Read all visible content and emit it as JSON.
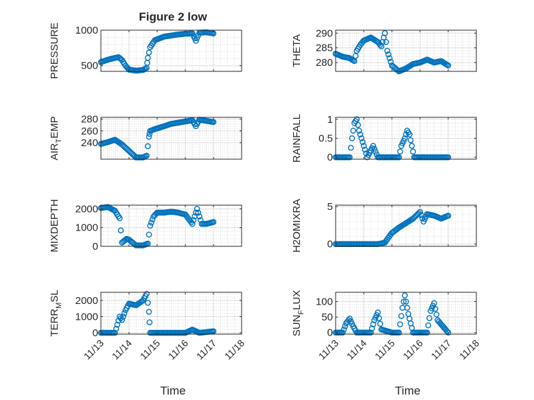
{
  "figure_title": "Figure 2 low",
  "x_axis_title": "Time",
  "chart_data": [
    {
      "type": "scatter",
      "ylabel": "PRESSURE",
      "xlim": [
        "11/13",
        "11/18"
      ],
      "xticks": [
        "11/13",
        "11/14",
        "11/15",
        "11/16",
        "11/17",
        "11/18"
      ],
      "ylim": [
        420,
        1000
      ],
      "yticks": [
        500,
        1000
      ],
      "yticklabels": [
        "500",
        "1000"
      ],
      "grid": true,
      "marker": "circle",
      "color": "#0072BD",
      "x": [
        "11/13 00:00",
        "11/13 06:00",
        "11/13 12:00",
        "11/13 15:00",
        "11/13 18:00",
        "11/13 21:00",
        "11/14 00:00",
        "11/14 06:00",
        "11/14 12:00",
        "11/14 15:00",
        "11/14 16:00",
        "11/14 18:00",
        "11/14 22:00",
        "11/15 06:00",
        "11/15 12:00",
        "11/15 18:00",
        "11/16 00:00",
        "11/16 06:00",
        "11/16 09:00",
        "11/16 12:00",
        "11/16 18:00",
        "11/17 00:00"
      ],
      "y": [
        550,
        585,
        610,
        620,
        580,
        500,
        445,
        430,
        440,
        470,
        610,
        760,
        860,
        910,
        925,
        940,
        950,
        955,
        850,
        965,
        970,
        955
      ]
    },
    {
      "type": "scatter",
      "ylabel": "THETA",
      "xlim": [
        "11/13",
        "11/18"
      ],
      "xticks": [
        "11/13",
        "11/14",
        "11/15",
        "11/16",
        "11/17",
        "11/18"
      ],
      "ylim": [
        277,
        291
      ],
      "yticks": [
        280,
        285,
        290
      ],
      "yticklabels": [
        "280",
        "285",
        "290"
      ],
      "grid": true,
      "marker": "circle",
      "color": "#0072BD",
      "x": [
        "11/13 00:00",
        "11/13 06:00",
        "11/13 12:00",
        "11/13 16:00",
        "11/13 18:00",
        "11/13 21:00",
        "11/14 00:00",
        "11/14 06:00",
        "11/14 12:00",
        "11/14 15:00",
        "11/14 18:00",
        "11/14 20:00",
        "11/15 00:00",
        "11/15 06:00",
        "11/15 12:00",
        "11/15 18:00",
        "11/16 00:00",
        "11/16 06:00",
        "11/16 12:00",
        "11/16 18:00",
        "11/17 00:00"
      ],
      "y": [
        283,
        282,
        281.5,
        280.5,
        284,
        286,
        287.5,
        288.5,
        287,
        285.5,
        290,
        284,
        279,
        277,
        278,
        279.5,
        280,
        281,
        280,
        280.5,
        279
      ]
    },
    {
      "type": "scatter",
      "ylabel": "AIR_TEMP",
      "xlim": [
        "11/13",
        "11/18"
      ],
      "xticks": [
        "11/13",
        "11/14",
        "11/15",
        "11/16",
        "11/17",
        "11/18"
      ],
      "ylim": [
        212,
        283
      ],
      "yticks": [
        240,
        260,
        280
      ],
      "yticklabels": [
        "240",
        "260",
        "280"
      ],
      "grid": true,
      "marker": "circle",
      "color": "#0072BD",
      "x": [
        "11/13 00:00",
        "11/13 06:00",
        "11/13 12:00",
        "11/13 18:00",
        "11/14 00:00",
        "11/14 06:00",
        "11/14 12:00",
        "11/14 15:00",
        "11/14 17:00",
        "11/14 18:00",
        "11/14 22:00",
        "11/15 06:00",
        "11/15 12:00",
        "11/15 18:00",
        "11/16 00:00",
        "11/16 06:00",
        "11/16 09:00",
        "11/16 12:00",
        "11/16 18:00",
        "11/17 00:00"
      ],
      "y": [
        238,
        241,
        245,
        237,
        226,
        215,
        215,
        218,
        250,
        260,
        263,
        268,
        272,
        274,
        276,
        278,
        268,
        279,
        277,
        275
      ]
    },
    {
      "type": "scatter",
      "ylabel": "RAINFALL",
      "xlim": [
        "11/13",
        "11/18"
      ],
      "xticks": [
        "11/13",
        "11/14",
        "11/15",
        "11/16",
        "11/17",
        "11/18"
      ],
      "ylim": [
        -0.05,
        1.05
      ],
      "yticks": [
        0,
        0.5,
        1
      ],
      "yticklabels": [
        "0",
        "0.5",
        "1"
      ],
      "grid": true,
      "marker": "circle",
      "color": "#0072BD",
      "x": [
        "11/13 00:00",
        "11/13 06:00",
        "11/13 12:00",
        "11/13 14:00",
        "11/13 16:00",
        "11/13 18:00",
        "11/13 20:00",
        "11/13 22:00",
        "11/14 00:00",
        "11/14 03:00",
        "11/14 08:00",
        "11/14 12:00",
        "11/15 00:00",
        "11/15 06:00",
        "11/15 08:00",
        "11/15 11:00",
        "11/15 13:00",
        "11/15 15:00",
        "11/15 17:00",
        "11/15 19:00",
        "11/16 00:00",
        "11/16 12:00",
        "11/17 00:00"
      ],
      "y": [
        0,
        0,
        0,
        0.5,
        0.9,
        1,
        0.7,
        0.5,
        0.3,
        0,
        0.3,
        0,
        0,
        0,
        0.3,
        0.5,
        0.7,
        0.6,
        0.3,
        0,
        0,
        0,
        0
      ]
    },
    {
      "type": "scatter",
      "ylabel": "MIXDEPTH",
      "xlim": [
        "11/13",
        "11/18"
      ],
      "xticks": [
        "11/13",
        "11/14",
        "11/15",
        "11/16",
        "11/17",
        "11/18"
      ],
      "ylim": [
        0,
        2200
      ],
      "yticks": [
        0,
        1000,
        2000
      ],
      "yticklabels": [
        "0",
        "1000",
        "2000"
      ],
      "grid": true,
      "marker": "circle",
      "color": "#0072BD",
      "x": [
        "11/13 00:00",
        "11/13 06:00",
        "11/13 12:00",
        "11/13 16:00",
        "11/13 18:00",
        "11/13 22:00",
        "11/14 00:00",
        "11/14 06:00",
        "11/14 12:00",
        "11/14 16:00",
        "11/14 18:00",
        "11/14 21:00",
        "11/15 00:00",
        "11/15 06:00",
        "11/15 12:00",
        "11/15 18:00",
        "11/16 00:00",
        "11/16 06:00",
        "11/16 08:00",
        "11/16 10:00",
        "11/16 14:00",
        "11/16 18:00",
        "11/17 00:00"
      ],
      "y": [
        2050,
        2100,
        1900,
        1500,
        200,
        400,
        350,
        50,
        50,
        150,
        1100,
        1600,
        1800,
        1800,
        1850,
        1800,
        1700,
        1200,
        1600,
        2000,
        1200,
        1200,
        1300
      ]
    },
    {
      "type": "scatter",
      "ylabel": "H2OMIXRA",
      "xlim": [
        "11/13",
        "11/18"
      ],
      "xticks": [
        "11/13",
        "11/14",
        "11/15",
        "11/16",
        "11/17",
        "11/18"
      ],
      "ylim": [
        -0.3,
        5.2
      ],
      "yticks": [
        0,
        5
      ],
      "yticklabels": [
        "0",
        "5"
      ],
      "grid": true,
      "marker": "circle",
      "color": "#0072BD",
      "x": [
        "11/13 00:00",
        "11/13 12:00",
        "11/14 00:00",
        "11/14 12:00",
        "11/14 18:00",
        "11/15 00:00",
        "11/15 06:00",
        "11/15 12:00",
        "11/15 18:00",
        "11/16 00:00",
        "11/16 03:00",
        "11/16 06:00",
        "11/16 12:00",
        "11/16 18:00",
        "11/17 00:00"
      ],
      "y": [
        0,
        0,
        0,
        0,
        0.2,
        1.5,
        2.2,
        2.8,
        3.4,
        4.3,
        3.0,
        4.0,
        3.8,
        3.4,
        3.8
      ]
    },
    {
      "type": "scatter",
      "ylabel": "TERR_MSL",
      "xlim": [
        "11/13",
        "11/18"
      ],
      "xticks": [
        "11/13",
        "11/14",
        "11/15",
        "11/16",
        "11/17",
        "11/18"
      ],
      "ylim": [
        -80,
        2500
      ],
      "yticks": [
        0,
        1000,
        2000
      ],
      "yticklabels": [
        "0",
        "1000",
        "2000"
      ],
      "grid": true,
      "marker": "circle",
      "color": "#0072BD",
      "x": [
        "11/13 00:00",
        "11/13 12:00",
        "11/13 16:00",
        "11/13 18:00",
        "11/13 21:00",
        "11/14 00:00",
        "11/14 06:00",
        "11/14 12:00",
        "11/14 15:00",
        "11/14 17:00",
        "11/14 18:00",
        "11/15 00:00",
        "11/15 12:00",
        "11/16 00:00",
        "11/16 06:00",
        "11/16 12:00",
        "11/17 00:00"
      ],
      "y": [
        0,
        0,
        1000,
        800,
        1400,
        1800,
        1700,
        2000,
        2400,
        1300,
        0,
        0,
        0,
        0,
        200,
        0,
        100
      ]
    },
    {
      "type": "scatter",
      "ylabel": "SUN_FLUX",
      "xlim": [
        "11/13",
        "11/18"
      ],
      "xticks": [
        "11/13",
        "11/14",
        "11/15",
        "11/16",
        "11/17",
        "11/18"
      ],
      "ylim": [
        -5,
        130
      ],
      "yticks": [
        0,
        50,
        100
      ],
      "yticklabels": [
        "0",
        "50",
        "100"
      ],
      "grid": true,
      "marker": "circle",
      "color": "#0072BD",
      "x": [
        "11/13 00:00",
        "11/13 06:00",
        "11/13 09:00",
        "11/13 12:00",
        "11/13 15:00",
        "11/13 18:00",
        "11/14 00:00",
        "11/14 06:00",
        "11/14 09:00",
        "11/14 12:00",
        "11/14 15:00",
        "11/15 00:00",
        "11/15 06:00",
        "11/15 09:00",
        "11/15 11:00",
        "11/15 14:00",
        "11/15 18:00",
        "11/16 00:00",
        "11/16 06:00",
        "11/16 09:00",
        "11/16 12:00",
        "11/16 15:00",
        "11/17 00:00"
      ],
      "y": [
        0,
        0,
        30,
        45,
        20,
        0,
        0,
        0,
        40,
        65,
        10,
        0,
        0,
        80,
        120,
        60,
        0,
        0,
        0,
        70,
        95,
        40,
        0
      ]
    }
  ]
}
